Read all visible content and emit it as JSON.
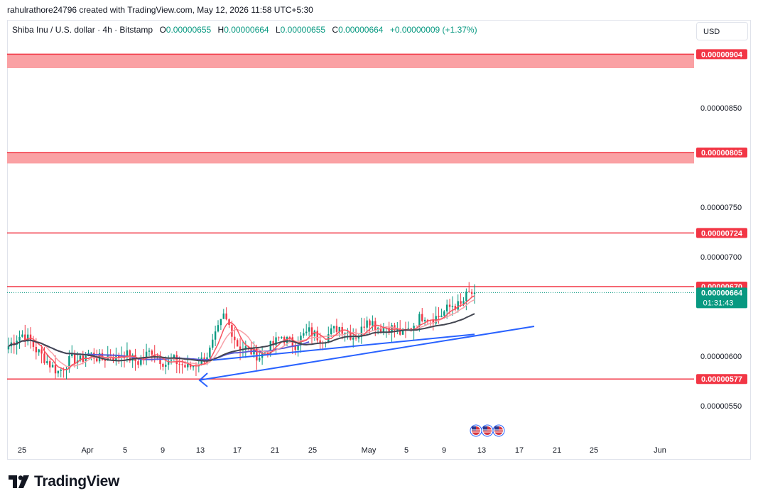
{
  "header": {
    "credit": "rahulrathore24796 created with TradingView.com, May 12, 2026 11:58 UTC+5:30"
  },
  "legend": {
    "symbol": "Shiba Inu / U.S. dollar · 4h · Bitstamp",
    "o_label": "O",
    "o_value": "0.00000655",
    "h_label": "H",
    "h_value": "0.00000664",
    "l_label": "L",
    "l_value": "0.00000655",
    "c_label": "C",
    "c_value": "0.00000664",
    "change": "+0.00000009 (+1.37%)"
  },
  "currency": "USD",
  "footer": {
    "brand": "TradingView"
  },
  "colors": {
    "up": "#089981",
    "down": "#f23645",
    "level": "#f23645",
    "zone": "#faa1a4",
    "trendline": "#2962ff",
    "ema_fast": "#f7525f",
    "ema_mid": "#f7a1a8",
    "ma_slow": "#434651",
    "ma_blue": "#5b5bd6"
  },
  "chart_data": {
    "type": "candlestick",
    "ylim": [
      5.26e-06,
      9.3e-06
    ],
    "y_ticks": [
      "0.00000850",
      "0.00000750",
      "0.00000700",
      "0.00000600",
      "0.00000550"
    ],
    "x_ticks": [
      "25",
      "Apr",
      "5",
      "9",
      "13",
      "17",
      "21",
      "25",
      "May",
      "5",
      "9",
      "13",
      "17",
      "21",
      "25",
      "Jun"
    ],
    "levels": [
      {
        "label": "0.00000904",
        "value": 9.04e-06,
        "zone": [
          8.9e-06,
          9.04e-06
        ]
      },
      {
        "label": "0.00000805",
        "value": 8.05e-06,
        "zone": [
          7.94e-06,
          8.05e-06
        ]
      },
      {
        "label": "0.00000724",
        "value": 7.24e-06
      },
      {
        "label": "0.00000670",
        "value": 6.7e-06
      },
      {
        "label": "0.00000577",
        "value": 5.77e-06
      }
    ],
    "last_price": {
      "label": "0.00000664",
      "countdown": "01:31:43",
      "value": 6.64e-06
    },
    "close_path": [
      6.1e-06,
      6.18e-06,
      6.22e-06,
      6.15e-06,
      6.05e-06,
      5.98e-06,
      5.9e-06,
      5.84e-06,
      5.92e-06,
      5.98e-06,
      5.95e-06,
      6.03e-06,
      6e-06,
      5.96e-06,
      6.02e-06,
      5.98e-06,
      6.04e-06,
      5.98e-06,
      5.94e-06,
      6e-06,
      6.06e-06,
      5.98e-06,
      5.92e-06,
      5.96e-06,
      5.92e-06,
      5.88e-06,
      5.92e-06,
      5.96e-06,
      6.04e-06,
      6.22e-06,
      6.4e-06,
      6.28e-06,
      6.1e-06,
      6.08e-06,
      6.04e-06,
      6e-06,
      6.06e-06,
      6.12e-06,
      6.2e-06,
      6.15e-06,
      6.12e-06,
      6.2e-06,
      6.25e-06,
      6.2e-06,
      6.18e-06,
      6.24e-06,
      6.3e-06,
      6.26e-06,
      6.2e-06,
      6.22e-06,
      6.4e-06,
      6.32e-06,
      6.28e-06,
      6.3e-06,
      6.26e-06,
      6.22e-06,
      6.28e-06,
      6.36e-06,
      6.42e-06,
      6.38e-06,
      6.4e-06,
      6.46e-06,
      6.52e-06,
      6.5e-06,
      6.62e-06,
      6.64e-06
    ]
  }
}
